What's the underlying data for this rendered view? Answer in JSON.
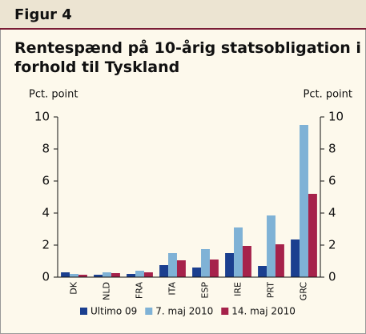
{
  "header": "Figur 4",
  "chart_data": {
    "type": "bar",
    "title": "Rentespænd på 10-årig statsobligation i forhold til Tyskland",
    "ylabel": "Pct. point",
    "y2label": "Pct. point",
    "categories": [
      "DK",
      "NLD",
      "FRA",
      "ITA",
      "ESP",
      "IRE",
      "PRT",
      "GRC"
    ],
    "series": [
      {
        "name": "Ultimo 09",
        "color": "#1b3f8f",
        "values": [
          0.3,
          0.15,
          0.2,
          0.75,
          0.6,
          1.5,
          0.7,
          2.35
        ]
      },
      {
        "name": "7. maj 2010",
        "color": "#7fb2d6",
        "values": [
          0.2,
          0.3,
          0.4,
          1.5,
          1.75,
          3.1,
          3.85,
          9.5
        ]
      },
      {
        "name": "14. maj 2010",
        "color": "#a6224b",
        "values": [
          0.15,
          0.25,
          0.3,
          1.05,
          1.1,
          1.95,
          2.05,
          5.2
        ]
      }
    ],
    "ylim": [
      0,
      10
    ],
    "yticks": [
      0,
      2,
      4,
      6,
      8,
      10
    ],
    "y2lim": [
      0,
      10
    ],
    "y2ticks": [
      0,
      2,
      4,
      6,
      8,
      10
    ],
    "legend": "bottom"
  }
}
